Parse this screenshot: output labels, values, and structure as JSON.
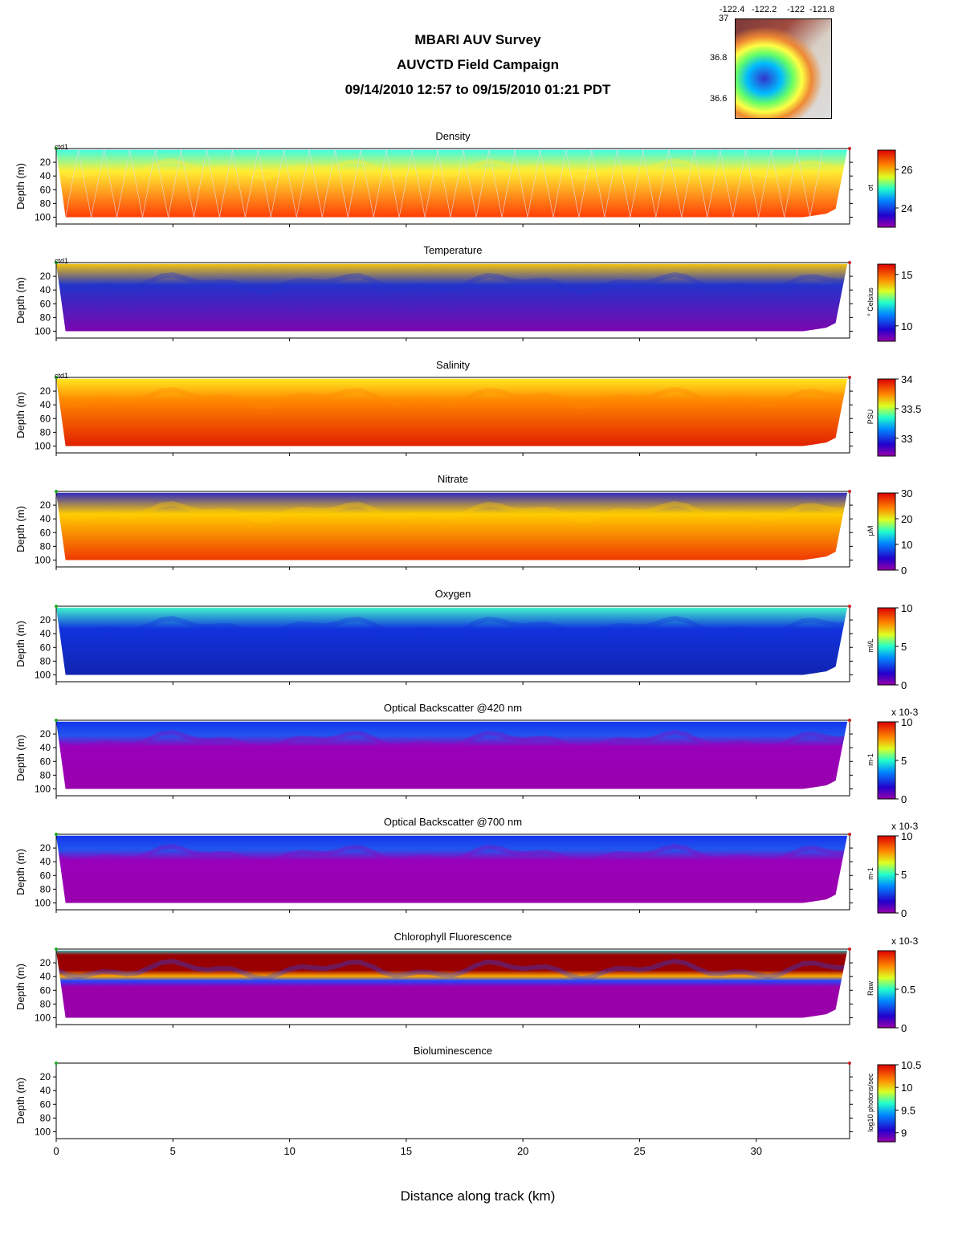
{
  "header": {
    "line1": "MBARI AUV Survey",
    "line2": "AUVCTD Field Campaign",
    "line3": "09/14/2010 12:57  to 09/15/2010 01:21 PDT"
  },
  "inset_map": {
    "lon_ticks": [
      "-122.4",
      "-122.2",
      "-122",
      "-121.8"
    ],
    "lat_ticks": [
      "37",
      "36.8",
      "36.6"
    ]
  },
  "chart_data": {
    "type": "heatmap",
    "xlabel": "Distance along track (km)",
    "ylabel": "Depth (m)",
    "xlim": [
      0,
      34
    ],
    "ylim": [
      110,
      0
    ],
    "x_ticks": [
      0,
      5,
      10,
      15,
      20,
      25,
      30
    ],
    "y_ticks": [
      20,
      40,
      60,
      80,
      100
    ],
    "panels": [
      {
        "title": "Density",
        "unit_label": "σt",
        "cbar_ticks": [
          "26",
          "24"
        ],
        "cbar_range": [
          23,
          27
        ],
        "marker_label": "ctd1",
        "has_profiles": true,
        "scheme": "stratified",
        "colors": {
          "top": "#33ffee",
          "mid": "#ffee33",
          "bottom": "#ff2200"
        }
      },
      {
        "title": "Temperature",
        "unit_label": "° Celsius",
        "cbar_ticks": [
          "15",
          "10"
        ],
        "cbar_range": [
          8.5,
          16
        ],
        "marker_label": "ctd1",
        "scheme": "warm_top",
        "colors": {
          "top": "#ffcc00",
          "mid": "#2233cc",
          "bottom": "#8800aa"
        }
      },
      {
        "title": "Salinity",
        "unit_label": "PSU",
        "cbar_ticks": [
          "34",
          "33.5",
          "33"
        ],
        "cbar_range": [
          32.7,
          34
        ],
        "marker_label": "ctd1",
        "scheme": "salty",
        "colors": {
          "top": "#ffee22",
          "mid": "#ff8800",
          "bottom": "#dd1100"
        }
      },
      {
        "title": "Nitrate",
        "unit_label": "μM",
        "cbar_ticks": [
          "30",
          "20",
          "10",
          "0"
        ],
        "cbar_range": [
          0,
          30
        ],
        "marker_label": "",
        "scheme": "nutrient",
        "colors": {
          "top": "#2222cc",
          "mid": "#ffcc00",
          "bottom": "#ee2200"
        }
      },
      {
        "title": "Oxygen",
        "unit_label": "ml/L",
        "cbar_ticks": [
          "10",
          "5",
          "0"
        ],
        "cbar_range": [
          0,
          10
        ],
        "marker_label": "",
        "scheme": "oxy",
        "colors": {
          "top": "#44ffcc",
          "mid": "#1133dd",
          "bottom": "#1122aa"
        }
      },
      {
        "title": "Optical Backscatter @420 nm",
        "unit_label": "m-1",
        "cbar_ticks": [
          "10",
          "5",
          "0"
        ],
        "cbar_range": [
          0,
          10
        ],
        "cbar_scale": "x 10-3",
        "marker_label": "",
        "scheme": "bbp",
        "colors": {
          "top": "#1133ee",
          "mid": "#9900bb",
          "bottom": "#9900aa"
        }
      },
      {
        "title": "Optical Backscatter @700 nm",
        "unit_label": "m-1",
        "cbar_ticks": [
          "10",
          "5",
          "0"
        ],
        "cbar_range": [
          0,
          10
        ],
        "cbar_scale": "x 10-3",
        "marker_label": "",
        "scheme": "bbp",
        "colors": {
          "top": "#1133ee",
          "mid": "#9900bb",
          "bottom": "#9900aa"
        }
      },
      {
        "title": "Chlorophyll Fluorescence",
        "unit_label": "Raw",
        "cbar_ticks": [
          "0.5",
          "0"
        ],
        "cbar_range": [
          0,
          1
        ],
        "cbar_scale": "x 10-3",
        "marker_label": "",
        "scheme": "chl",
        "colors": {
          "top": "#990000",
          "mid": "#2244ff",
          "bottom": "#9900aa"
        }
      },
      {
        "title": "Bioluminescence",
        "unit_label": "log10 photons/sec",
        "cbar_ticks": [
          "10.5",
          "10",
          "9.5",
          "9"
        ],
        "cbar_range": [
          8.8,
          10.5
        ],
        "marker_label": "",
        "scheme": "empty",
        "colors": {
          "top": "#ffffff",
          "mid": "#ffffff",
          "bottom": "#ffffff"
        }
      }
    ]
  }
}
